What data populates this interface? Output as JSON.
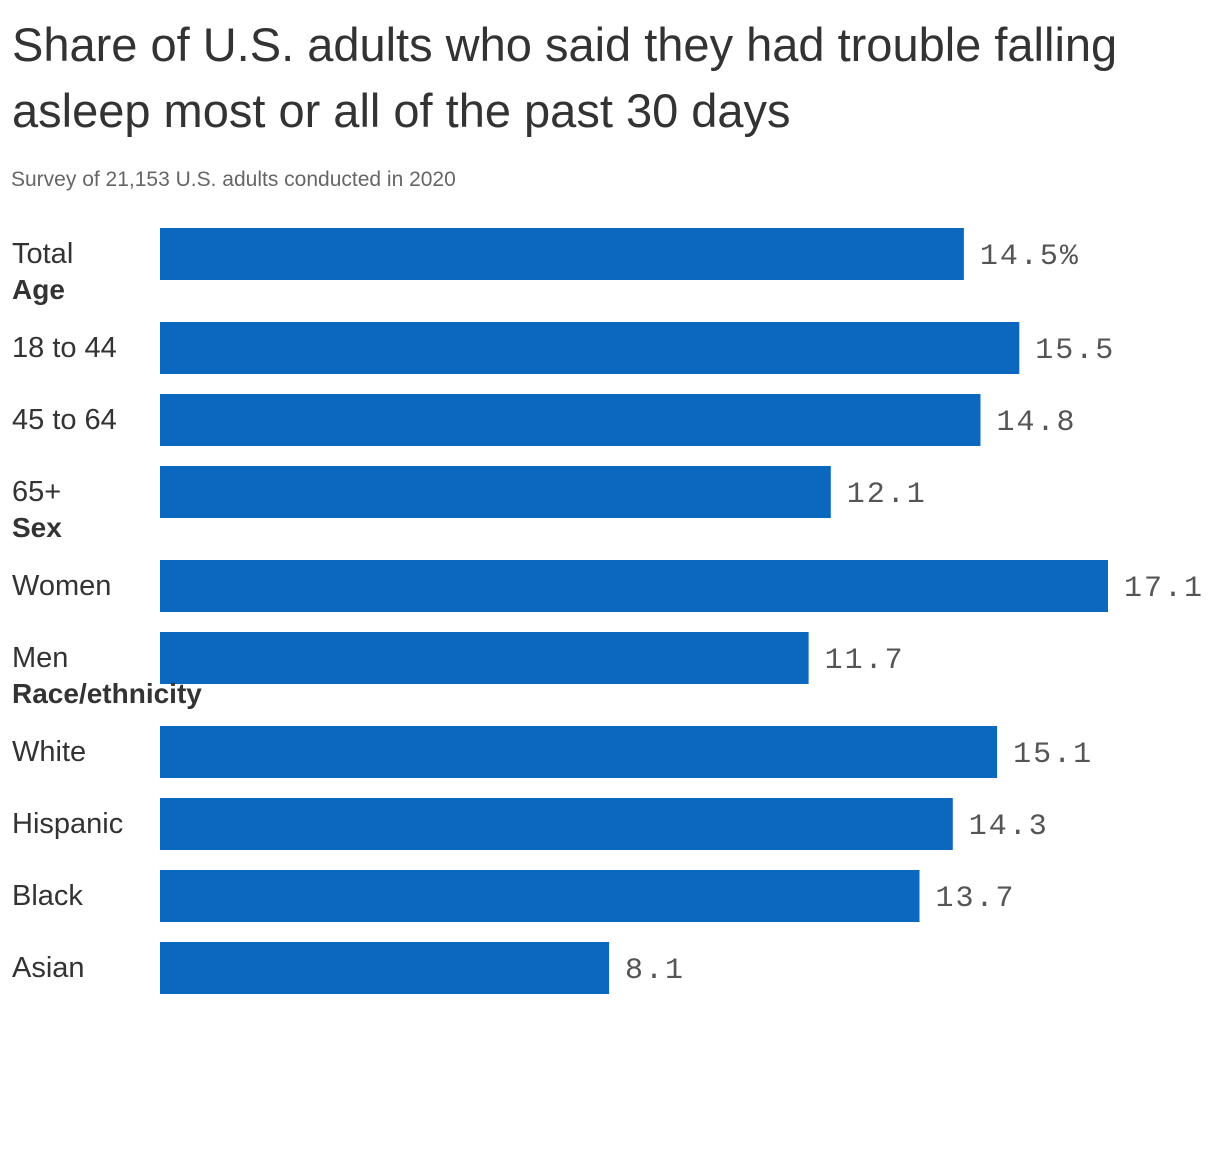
{
  "title": "Share of U.S. adults who said they had trouble falling asleep most or all of the past 30 days",
  "subtitle": "Survey of 21,153 U.S. adults conducted in 2020",
  "colors": {
    "bar": "#0c68be",
    "text": "#333333",
    "subtext": "#666666",
    "value": "#555555"
  },
  "chart_data": {
    "type": "bar",
    "orientation": "horizontal",
    "unit": "%",
    "xlim": [
      0,
      17.1
    ],
    "grid": false,
    "legend": "none",
    "groups": [
      {
        "name": "",
        "items": [
          {
            "label": "Total",
            "value": 14.5,
            "value_label": "14.5%"
          }
        ]
      },
      {
        "name": "Age",
        "items": [
          {
            "label": "18 to 44",
            "value": 15.5,
            "value_label": "15.5"
          },
          {
            "label": "45 to 64",
            "value": 14.8,
            "value_label": "14.8"
          },
          {
            "label": "65+",
            "value": 12.1,
            "value_label": "12.1"
          }
        ]
      },
      {
        "name": "Sex",
        "items": [
          {
            "label": "Women",
            "value": 17.1,
            "value_label": "17.1"
          },
          {
            "label": "Men",
            "value": 11.7,
            "value_label": "11.7"
          }
        ]
      },
      {
        "name": "Race/ethnicity",
        "items": [
          {
            "label": "White",
            "value": 15.1,
            "value_label": "15.1"
          },
          {
            "label": "Hispanic",
            "value": 14.3,
            "value_label": "14.3"
          },
          {
            "label": "Black",
            "value": 13.7,
            "value_label": "13.7"
          },
          {
            "label": "Asian",
            "value": 8.1,
            "value_label": "8.1"
          }
        ]
      }
    ]
  }
}
